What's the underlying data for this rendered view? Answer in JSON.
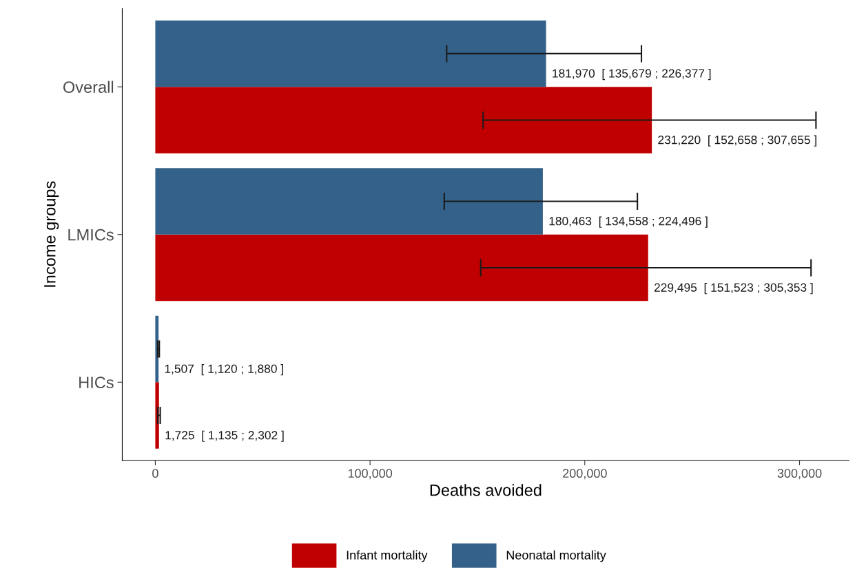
{
  "chart_data": {
    "type": "bar",
    "orientation": "horizontal",
    "xlabel": "Deaths avoided",
    "ylabel": "Income groups",
    "categories": [
      "Overall",
      "LMICs",
      "HICs"
    ],
    "series": [
      {
        "name": "Infant mortality",
        "color": "#c00000",
        "values": [
          231220,
          229495,
          1725
        ],
        "errors": [
          [
            152658,
            307655
          ],
          [
            151523,
            305353
          ],
          [
            1135,
            2302
          ]
        ],
        "value_labels": [
          "231,220  [ 152,658 ; 307,655 ]",
          "229,495  [ 151,523 ; 305,353 ]",
          "1,725  [ 1,135 ; 2,302 ]"
        ]
      },
      {
        "name": "Neonatal mortality",
        "color": "#34618a",
        "values": [
          181970,
          180463,
          1507
        ],
        "errors": [
          [
            135679,
            226377
          ],
          [
            134558,
            224496
          ],
          [
            1120,
            1880
          ]
        ],
        "value_labels": [
          "181,970  [ 135,679 ; 226,377 ]",
          "180,463  [ 134,558 ; 224,496 ]",
          "1,507  [ 1,120 ; 1,880 ]"
        ]
      }
    ],
    "xlim": [
      -15383,
      323038
    ],
    "xticks": [
      {
        "value": 0,
        "label": "0"
      },
      {
        "value": 100000,
        "label": "100,000"
      },
      {
        "value": 200000,
        "label": "200,000"
      },
      {
        "value": 300000,
        "label": "300,000"
      }
    ],
    "grid": false,
    "legend": "bottom"
  }
}
